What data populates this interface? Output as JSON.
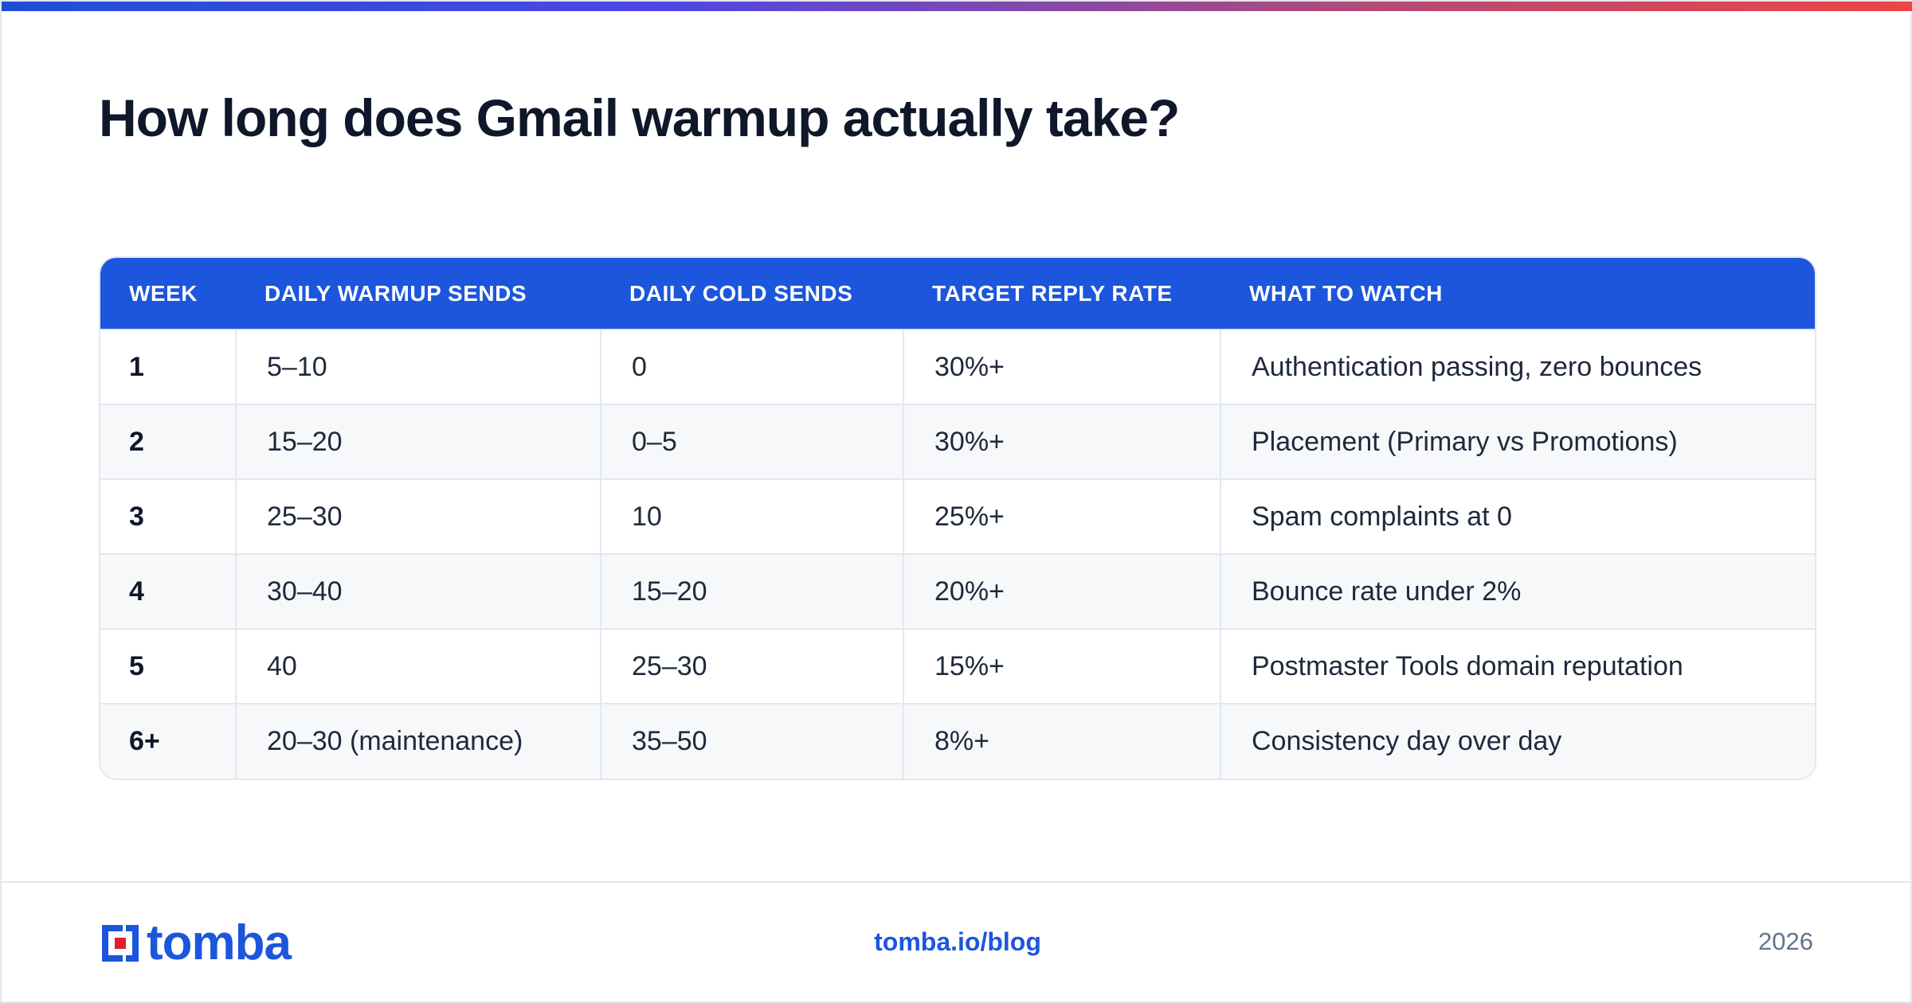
{
  "title": "How long does Gmail warmup actually take?",
  "table": {
    "headers": [
      "WEEK",
      "DAILY WARMUP SENDS",
      "DAILY COLD SENDS",
      "TARGET REPLY RATE",
      "WHAT TO WATCH"
    ],
    "rows": [
      [
        "1",
        "5–10",
        "0",
        "30%+",
        "Authentication passing, zero bounces"
      ],
      [
        "2",
        "15–20",
        "0–5",
        "30%+",
        "Placement (Primary vs Promotions)"
      ],
      [
        "3",
        "25–30",
        "10",
        "25%+",
        "Spam complaints at 0"
      ],
      [
        "4",
        "30–40",
        "15–20",
        "20%+",
        "Bounce rate under 2%"
      ],
      [
        "5",
        "40",
        "25–30",
        "15%+",
        "Postmaster Tools domain reputation"
      ],
      [
        "6+",
        "20–30 (maintenance)",
        "35–50",
        "8%+",
        "Consistency day over day"
      ]
    ]
  },
  "footer": {
    "brand": "tomba",
    "link": "tomba.io/blog",
    "year": "2026"
  },
  "colors": {
    "header_blue": "#1b56dc",
    "title": "#0f172a",
    "logo_red": "#e11d2e"
  }
}
